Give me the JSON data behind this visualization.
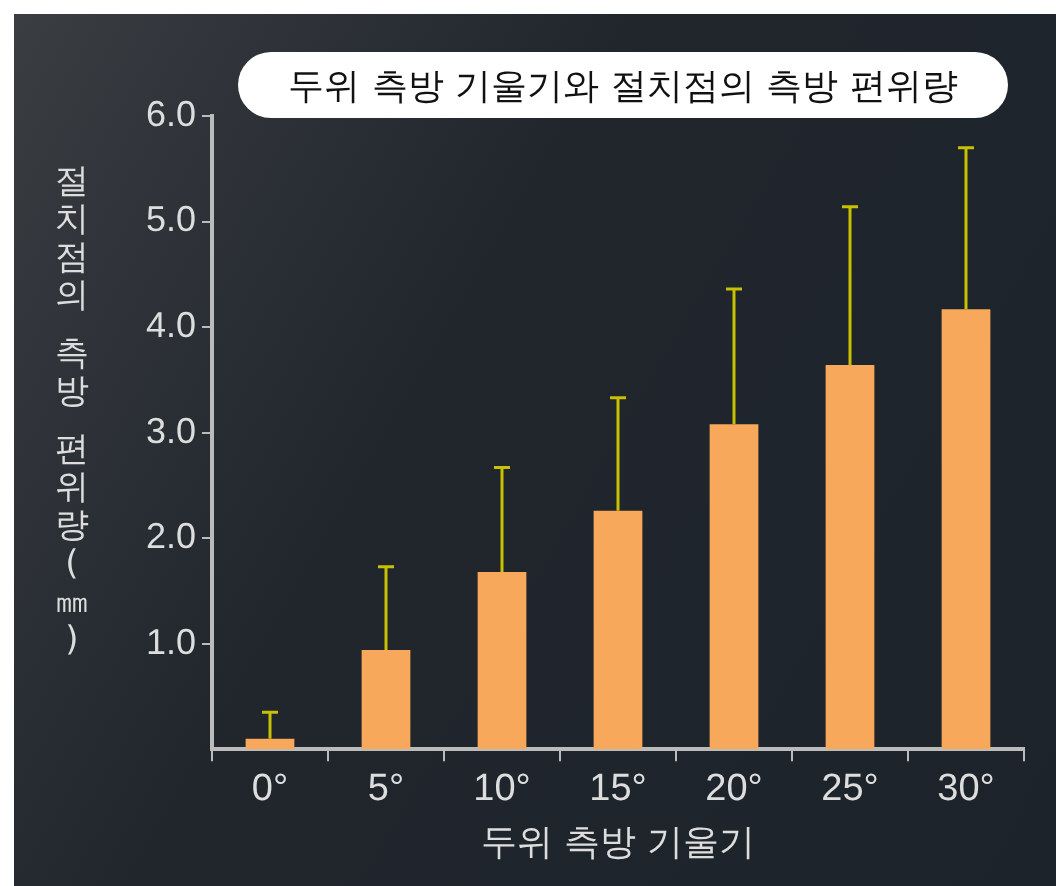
{
  "chart_data": {
    "type": "bar",
    "title": "두위 측방 기울기와 절치점의 측방 편위량",
    "xlabel": "두위 측방 기울기",
    "ylabel": "절치점의 측방 편위량(㎜)",
    "categories": [
      "0°",
      "5°",
      "10°",
      "15°",
      "20°",
      "25°",
      "30°"
    ],
    "values": [
      0.1,
      0.94,
      1.68,
      2.26,
      3.08,
      3.64,
      4.17
    ],
    "errors": [
      [
        0.1,
        0.35
      ],
      [
        0.94,
        1.73
      ],
      [
        1.68,
        2.67
      ],
      [
        2.26,
        3.33
      ],
      [
        3.08,
        4.36
      ],
      [
        3.64,
        5.14
      ],
      [
        4.17,
        5.7
      ]
    ],
    "color": "#f7a85a",
    "ylim": [
      0,
      6
    ],
    "yticks": [
      {
        "value": 1,
        "label": "1.0"
      },
      {
        "value": 2,
        "label": "2.0"
      },
      {
        "value": 3,
        "label": "3.0"
      },
      {
        "value": 4,
        "label": "4.0"
      },
      {
        "value": 5,
        "label": "5.0"
      },
      {
        "value": 6,
        "label": "6.0"
      }
    ],
    "grid": false,
    "legend": false
  }
}
